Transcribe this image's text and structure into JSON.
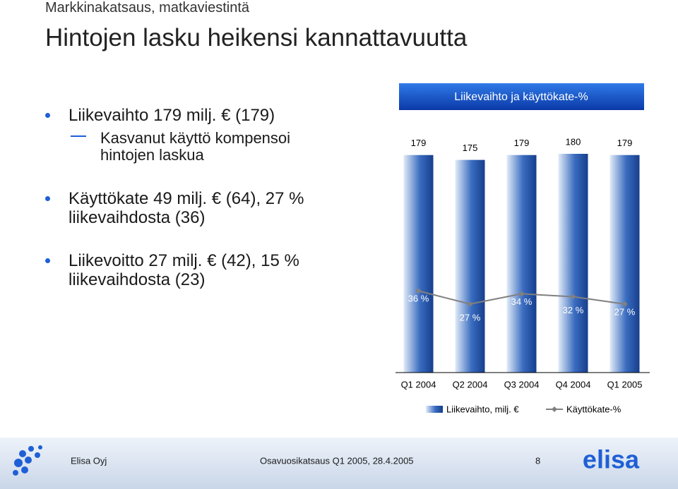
{
  "header": {
    "subtitle": "Markkinakatsaus, matkaviestintä",
    "title": "Hintojen lasku heikensi kannattavuutta"
  },
  "bullets": [
    {
      "text": "Liikevaihto 179 milj. € (179)",
      "sub": [
        "Kasvanut käyttö kompensoi hintojen laskua"
      ]
    },
    {
      "text": "Käyttökate 49 milj. € (64), 27 % liikevaihdosta (36)"
    },
    {
      "text": "Liikevoitto 27 milj. € (42), 15 % liikevaihdosta (23)"
    }
  ],
  "chart_data": {
    "type": "bar_line",
    "title": "Liikevaihto ja käyttökate-%",
    "categories": [
      "Q1 2004",
      "Q2 2004",
      "Q3 2004",
      "Q4 2004",
      "Q1 2005"
    ],
    "series": [
      {
        "name": "Liikevaihto, milj. €",
        "color": "#3a6cc0",
        "values": [
          179,
          175,
          179,
          180,
          179
        ]
      },
      {
        "name": "Käyttökate-%",
        "color": "#808080",
        "axis": "y2",
        "values": [
          36,
          27,
          34,
          32,
          27
        ],
        "value_labels": [
          "36 %",
          "27 %",
          "34 %",
          "32 %",
          "27 %"
        ]
      }
    ],
    "ylim": [
      0,
      180
    ],
    "y2lim": [
      -20,
      130
    ]
  },
  "footer": {
    "company": "Elisa Oyj",
    "event": "Osavuosikatsaus Q1 2005, 28.4.2005",
    "page": "8",
    "logo": "elisa"
  }
}
